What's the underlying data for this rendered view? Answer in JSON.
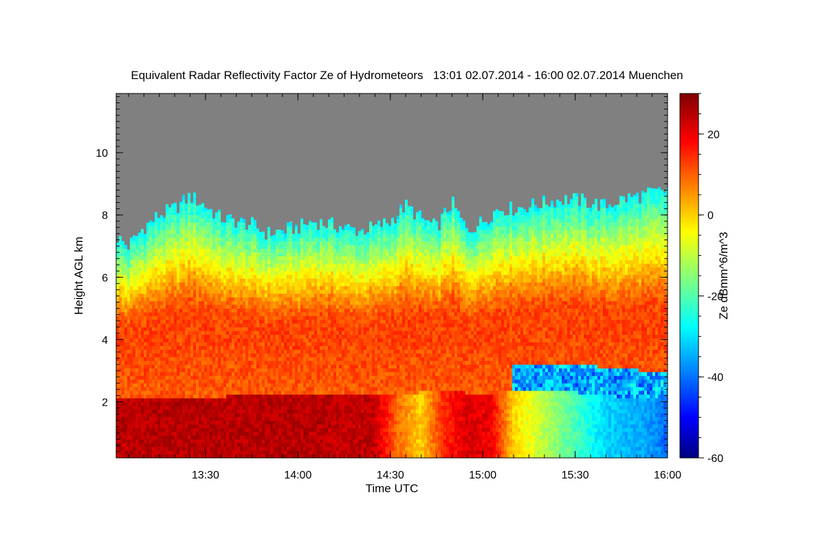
{
  "chart_data": {
    "type": "heatmap",
    "title": "Equivalent Radar Reflectivity Factor Ze of Hydrometeors   13:01 02.07.2014 - 16:00 02.07.2014 Muenchen",
    "xlabel": "Time UTC",
    "ylabel": "Height AGL km",
    "colorbar_label": "Ze dBmm^6/m^3",
    "x_range": [
      "13:01",
      "16:00"
    ],
    "x_ticks": [
      "13:30",
      "14:00",
      "14:30",
      "15:00",
      "15:30",
      "16:00"
    ],
    "ylim": [
      0.2,
      11.9
    ],
    "y_ticks": [
      2,
      4,
      6,
      8,
      10
    ],
    "colorbar_range": [
      -60,
      30
    ],
    "colorbar_ticks": [
      -60,
      -40,
      -20,
      0,
      20
    ],
    "colormap": "jet",
    "no_signal_color": "#808080",
    "cloud_top_km": [
      [
        "13:01",
        7.3
      ],
      [
        "13:05",
        7.0
      ],
      [
        "13:10",
        7.6
      ],
      [
        "13:15",
        8.0
      ],
      [
        "13:20",
        8.2
      ],
      [
        "13:25",
        8.6
      ],
      [
        "13:30",
        8.3
      ],
      [
        "13:35",
        7.9
      ],
      [
        "13:40",
        7.8
      ],
      [
        "13:45",
        7.7
      ],
      [
        "13:50",
        7.4
      ],
      [
        "13:55",
        7.5
      ],
      [
        "14:00",
        7.6
      ],
      [
        "14:05",
        7.8
      ],
      [
        "14:10",
        7.7
      ],
      [
        "14:15",
        7.6
      ],
      [
        "14:20",
        7.5
      ],
      [
        "14:25",
        7.6
      ],
      [
        "14:30",
        7.8
      ],
      [
        "14:35",
        8.3
      ],
      [
        "14:40",
        7.9
      ],
      [
        "14:45",
        7.6
      ],
      [
        "14:50",
        8.4
      ],
      [
        "14:55",
        7.5
      ],
      [
        "15:00",
        7.8
      ],
      [
        "15:05",
        8.2
      ],
      [
        "15:10",
        8.2
      ],
      [
        "15:15",
        8.3
      ],
      [
        "15:20",
        8.4
      ],
      [
        "15:25",
        8.5
      ],
      [
        "15:30",
        8.5
      ],
      [
        "15:35",
        8.4
      ],
      [
        "15:40",
        8.3
      ],
      [
        "15:45",
        8.5
      ],
      [
        "15:50",
        8.6
      ],
      [
        "15:55",
        8.7
      ],
      [
        "16:00",
        8.8
      ]
    ],
    "melting_layer_top_km": [
      [
        "13:01",
        2.1
      ],
      [
        "14:30",
        2.15
      ],
      [
        "14:45",
        2.3
      ],
      [
        "15:00",
        2.2
      ],
      [
        "15:15",
        2.3
      ],
      [
        "15:30",
        2.25
      ],
      [
        "15:45",
        2.1
      ],
      [
        "16:00",
        2.0
      ]
    ],
    "rain_band_Ze_dBz": [
      [
        "13:01",
        25
      ],
      [
        "14:00",
        25
      ],
      [
        "14:25",
        24
      ],
      [
        "14:32",
        10
      ],
      [
        "14:40",
        0
      ],
      [
        "14:47",
        15
      ],
      [
        "14:55",
        22
      ],
      [
        "15:03",
        20
      ],
      [
        "15:10",
        0
      ],
      [
        "15:25",
        -15
      ],
      [
        "15:40",
        -30
      ],
      [
        "15:55",
        -35
      ],
      [
        "16:00",
        -40
      ]
    ]
  }
}
